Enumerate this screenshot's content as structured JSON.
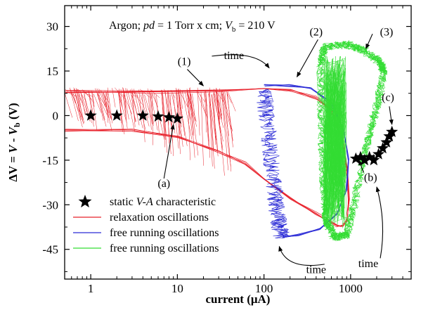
{
  "chart_data": {
    "type": "line",
    "title_parts": [
      "Argon; ",
      "pd",
      " = 1 Torr x cm; ",
      "V",
      "b",
      " = 210 V"
    ],
    "xlabel_parts": [
      "current (",
      "μ",
      "A)"
    ],
    "ylabel_parts": [
      "ΔV",
      " = ",
      "V",
      " - ",
      "V",
      "b",
      " (V)"
    ],
    "x_scale": "log",
    "xlim": [
      0.5,
      5000
    ],
    "ylim": [
      -55,
      37
    ],
    "x_ticks": [
      1,
      10,
      100,
      1000
    ],
    "x_tick_labels": [
      "1",
      "10",
      "100",
      "1000"
    ],
    "y_ticks": [
      30,
      15,
      0,
      -15,
      -30,
      -45
    ],
    "y_tick_labels": [
      "30",
      "15",
      "0",
      "-15",
      "-30",
      "-45"
    ],
    "legend": [
      {
        "label_parts": [
          "static ",
          "V-A",
          " characteristic"
        ],
        "marker": "star",
        "color": "#000000"
      },
      {
        "label": "relaxation oscillations",
        "marker": "line",
        "color": "#e8202a"
      },
      {
        "label": "free running oscillations",
        "marker": "line",
        "color": "#2b2bd6"
      },
      {
        "label": "free running oscillations",
        "marker": "line",
        "color": "#33dd33"
      }
    ],
    "series": [
      {
        "kind": "static",
        "color": "#000000",
        "points": [
          {
            "x": 1,
            "y": 0
          },
          {
            "x": 2,
            "y": 0
          },
          {
            "x": 4,
            "y": 0
          },
          {
            "x": 6,
            "y": -0.3
          },
          {
            "x": 8,
            "y": -0.6
          },
          {
            "x": 10,
            "y": -1
          },
          {
            "x": 1150,
            "y": -14.5
          },
          {
            "x": 1300,
            "y": -14
          },
          {
            "x": 1450,
            "y": -15
          },
          {
            "x": 1650,
            "y": -14
          },
          {
            "x": 1850,
            "y": -15
          },
          {
            "x": 2100,
            "y": -13
          },
          {
            "x": 2350,
            "y": -11
          },
          {
            "x": 2600,
            "y": -9
          },
          {
            "x": 2800,
            "y": -7
          },
          {
            "x": 3000,
            "y": -5.5
          }
        ]
      },
      {
        "kind": "relaxation",
        "color": "#e8202a",
        "upper_branch": [
          [
            0.5,
            8
          ],
          [
            5,
            8
          ],
          [
            30,
            8.5
          ],
          [
            100,
            9
          ],
          [
            200,
            8.5
          ],
          [
            400,
            6
          ],
          [
            600,
            2
          ],
          [
            800,
            -8
          ],
          [
            900,
            -18
          ],
          [
            950,
            -28
          ],
          [
            900,
            -35
          ],
          [
            800,
            -37
          ]
        ],
        "lower_branch": [
          [
            0.5,
            -5
          ],
          [
            3,
            -5
          ],
          [
            10,
            -7
          ],
          [
            30,
            -12
          ],
          [
            60,
            -16
          ],
          [
            100,
            -21
          ],
          [
            200,
            -28
          ],
          [
            400,
            -33
          ],
          [
            700,
            -37
          ],
          [
            800,
            -37
          ]
        ]
      },
      {
        "kind": "free_running_blue",
        "color": "#2b2bd6",
        "left_edge": [
          [
            100,
            9
          ],
          [
            110,
            0
          ],
          [
            120,
            -12
          ],
          [
            135,
            -25
          ],
          [
            150,
            -35
          ],
          [
            165,
            -41
          ]
        ],
        "right_arc": [
          [
            100,
            10
          ],
          [
            200,
            10
          ],
          [
            350,
            9
          ],
          [
            600,
            4
          ],
          [
            850,
            -5
          ],
          [
            950,
            -15
          ],
          [
            900,
            -25
          ],
          [
            700,
            -33
          ],
          [
            450,
            -38
          ],
          [
            250,
            -40
          ],
          [
            165,
            -41
          ]
        ]
      },
      {
        "kind": "free_running_green",
        "color": "#33dd33",
        "loop": [
          [
            450,
            17
          ],
          [
            500,
            23
          ],
          [
            900,
            24
          ],
          [
            1400,
            22
          ],
          [
            2200,
            18
          ],
          [
            2400,
            15
          ],
          [
            2100,
            5
          ],
          [
            1700,
            -5
          ],
          [
            1400,
            -15
          ],
          [
            1100,
            -30
          ],
          [
            900,
            -40
          ],
          [
            650,
            -41
          ],
          [
            520,
            -35
          ],
          [
            480,
            -20
          ],
          [
            460,
            0
          ],
          [
            450,
            17
          ]
        ]
      }
    ],
    "annotations": [
      {
        "label": "(1)",
        "x": 12,
        "y": 17
      },
      {
        "label": "(2)",
        "x": 400,
        "y": 27
      },
      {
        "label": "(3)",
        "x": 2600,
        "y": 27
      },
      {
        "label": "(a)",
        "x": 7,
        "y": -24
      },
      {
        "label": "(b)",
        "x": 1700,
        "y": -22
      },
      {
        "label": "(c)",
        "x": 2700,
        "y": 5
      },
      {
        "label": "time",
        "x": 45,
        "y": 19
      },
      {
        "label": "time",
        "x": 400,
        "y": -53
      },
      {
        "label": "time",
        "x": 1600,
        "y": -51
      }
    ]
  }
}
